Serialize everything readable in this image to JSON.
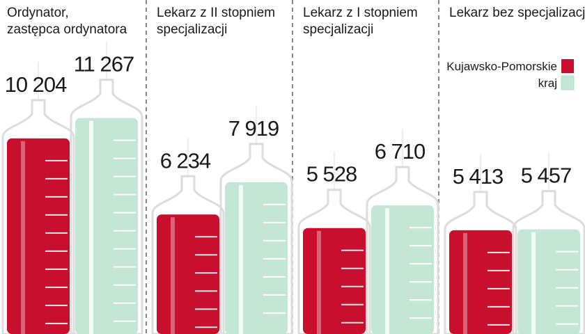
{
  "chart_data": {
    "type": "bar",
    "title": "",
    "xlabel": "",
    "ylabel": "",
    "categories": [
      [
        "Ordynator,",
        "zastępca ordynatora"
      ],
      [
        "Lekarz z II stopniem",
        "specjalizacji"
      ],
      [
        "Lekarz z I stopniem",
        "specjalizacji"
      ],
      [
        "Lekarz bez specjalizacji"
      ]
    ],
    "series": [
      {
        "name": "Kujawsko-Pomorskie",
        "color": "#c8102e",
        "values": [
          10204,
          6234,
          5528,
          5413
        ],
        "labels": [
          "10 204",
          "6 234",
          "5 528",
          "5 413"
        ]
      },
      {
        "name": "kraj",
        "color": "#c4e6d4",
        "values": [
          11267,
          7919,
          6710,
          5457
        ],
        "labels": [
          "11 267",
          "7 919",
          "6 710",
          "5 457"
        ]
      }
    ],
    "legend_position": "top-right",
    "grid": false,
    "ylim": [
      0,
      12000
    ]
  }
}
